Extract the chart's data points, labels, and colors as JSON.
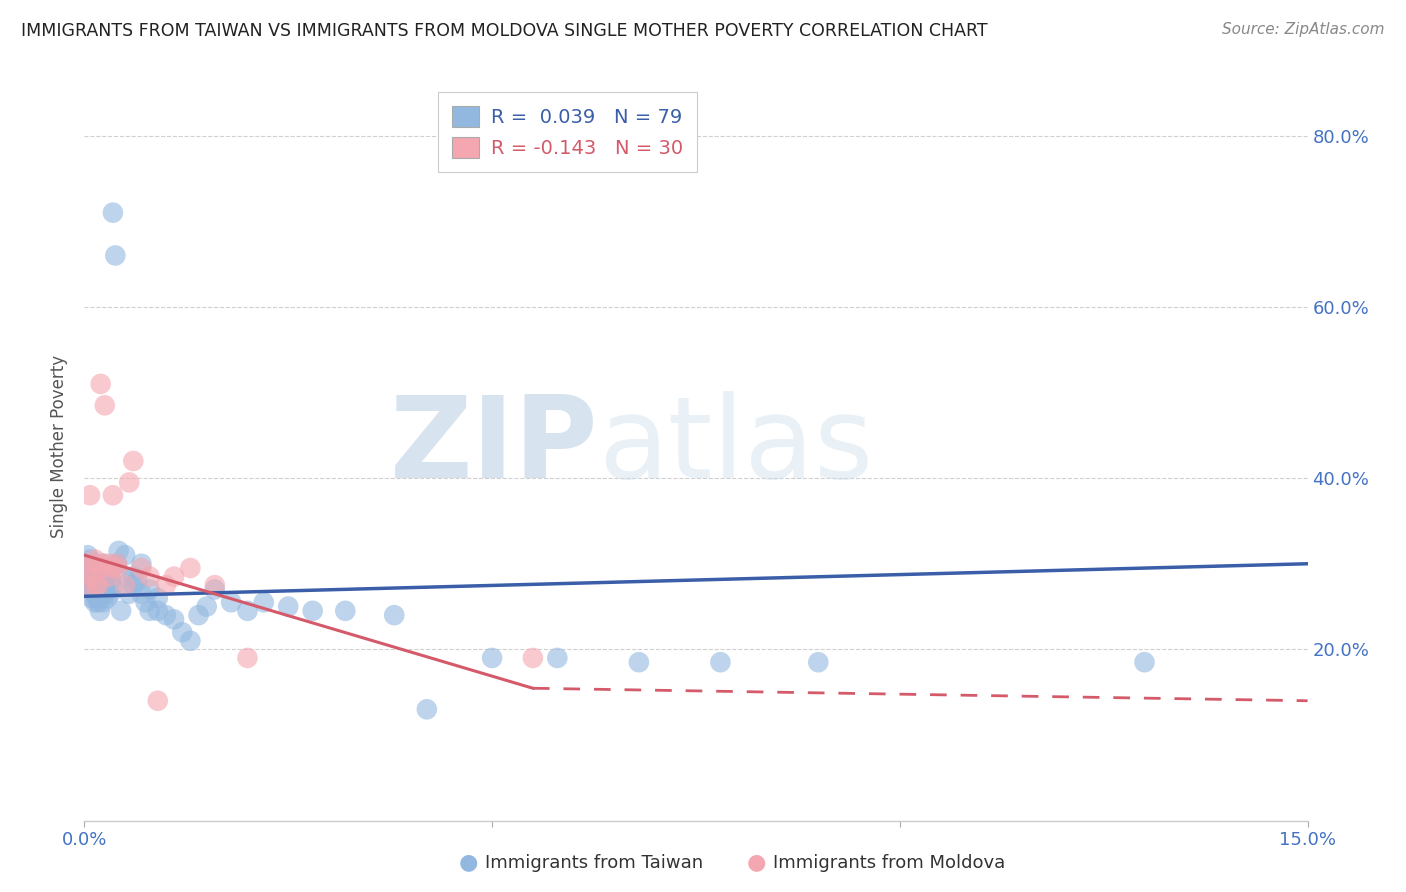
{
  "title": "IMMIGRANTS FROM TAIWAN VS IMMIGRANTS FROM MOLDOVA SINGLE MOTHER POVERTY CORRELATION CHART",
  "source": "Source: ZipAtlas.com",
  "ylabel": "Single Mother Poverty",
  "xmin": 0.0,
  "xmax": 0.15,
  "ymin": 0.0,
  "ymax": 0.875,
  "legend_taiwan": "Immigrants from Taiwan",
  "legend_moldova": "Immigrants from Moldova",
  "r_taiwan": 0.039,
  "n_taiwan": 79,
  "r_moldova": -0.143,
  "n_moldova": 30,
  "color_taiwan": "#92b8e0",
  "color_moldova": "#f4a7b0",
  "color_taiwan_line": "#3a5ea8",
  "color_moldova_line": "#d45a6a",
  "color_axis_labels": "#4472c4",
  "watermark_zip": "ZIP",
  "watermark_atlas": "atlas",
  "taiwan_x": [
    0.0002,
    0.0004,
    0.0005,
    0.0006,
    0.0007,
    0.0008,
    0.0008,
    0.0009,
    0.001,
    0.001,
    0.0011,
    0.0012,
    0.0012,
    0.0013,
    0.0013,
    0.0014,
    0.0015,
    0.0015,
    0.0016,
    0.0016,
    0.0017,
    0.0018,
    0.0018,
    0.0019,
    0.002,
    0.002,
    0.0021,
    0.0022,
    0.0022,
    0.0023,
    0.0024,
    0.0025,
    0.0026,
    0.0027,
    0.0028,
    0.003,
    0.003,
    0.0032,
    0.0033,
    0.0034,
    0.0035,
    0.0038,
    0.004,
    0.0042,
    0.0045,
    0.005,
    0.005,
    0.0055,
    0.006,
    0.006,
    0.0065,
    0.007,
    0.007,
    0.0075,
    0.008,
    0.008,
    0.009,
    0.009,
    0.01,
    0.011,
    0.012,
    0.013,
    0.014,
    0.015,
    0.016,
    0.018,
    0.02,
    0.022,
    0.025,
    0.028,
    0.032,
    0.038,
    0.042,
    0.05,
    0.058,
    0.068,
    0.078,
    0.09,
    0.13
  ],
  "taiwan_y": [
    0.295,
    0.31,
    0.28,
    0.275,
    0.305,
    0.27,
    0.29,
    0.26,
    0.285,
    0.275,
    0.3,
    0.265,
    0.28,
    0.255,
    0.275,
    0.29,
    0.265,
    0.27,
    0.285,
    0.26,
    0.255,
    0.27,
    0.28,
    0.245,
    0.295,
    0.27,
    0.265,
    0.28,
    0.275,
    0.255,
    0.3,
    0.265,
    0.275,
    0.285,
    0.26,
    0.295,
    0.27,
    0.265,
    0.28,
    0.275,
    0.71,
    0.66,
    0.3,
    0.315,
    0.245,
    0.285,
    0.31,
    0.265,
    0.285,
    0.275,
    0.28,
    0.265,
    0.3,
    0.255,
    0.27,
    0.245,
    0.26,
    0.245,
    0.24,
    0.235,
    0.22,
    0.21,
    0.24,
    0.25,
    0.27,
    0.255,
    0.245,
    0.255,
    0.25,
    0.245,
    0.245,
    0.24,
    0.13,
    0.19,
    0.19,
    0.185,
    0.185,
    0.185,
    0.185
  ],
  "moldova_x": [
    0.0003,
    0.0005,
    0.0007,
    0.001,
    0.001,
    0.0013,
    0.0015,
    0.0017,
    0.002,
    0.002,
    0.0022,
    0.0025,
    0.003,
    0.003,
    0.0033,
    0.0035,
    0.004,
    0.004,
    0.005,
    0.0055,
    0.006,
    0.007,
    0.008,
    0.009,
    0.01,
    0.011,
    0.013,
    0.016,
    0.02,
    0.055
  ],
  "moldova_y": [
    0.275,
    0.295,
    0.38,
    0.3,
    0.285,
    0.305,
    0.275,
    0.275,
    0.51,
    0.295,
    0.3,
    0.485,
    0.3,
    0.285,
    0.295,
    0.38,
    0.295,
    0.3,
    0.275,
    0.395,
    0.42,
    0.295,
    0.285,
    0.14,
    0.275,
    0.285,
    0.295,
    0.275,
    0.19,
    0.19
  ]
}
